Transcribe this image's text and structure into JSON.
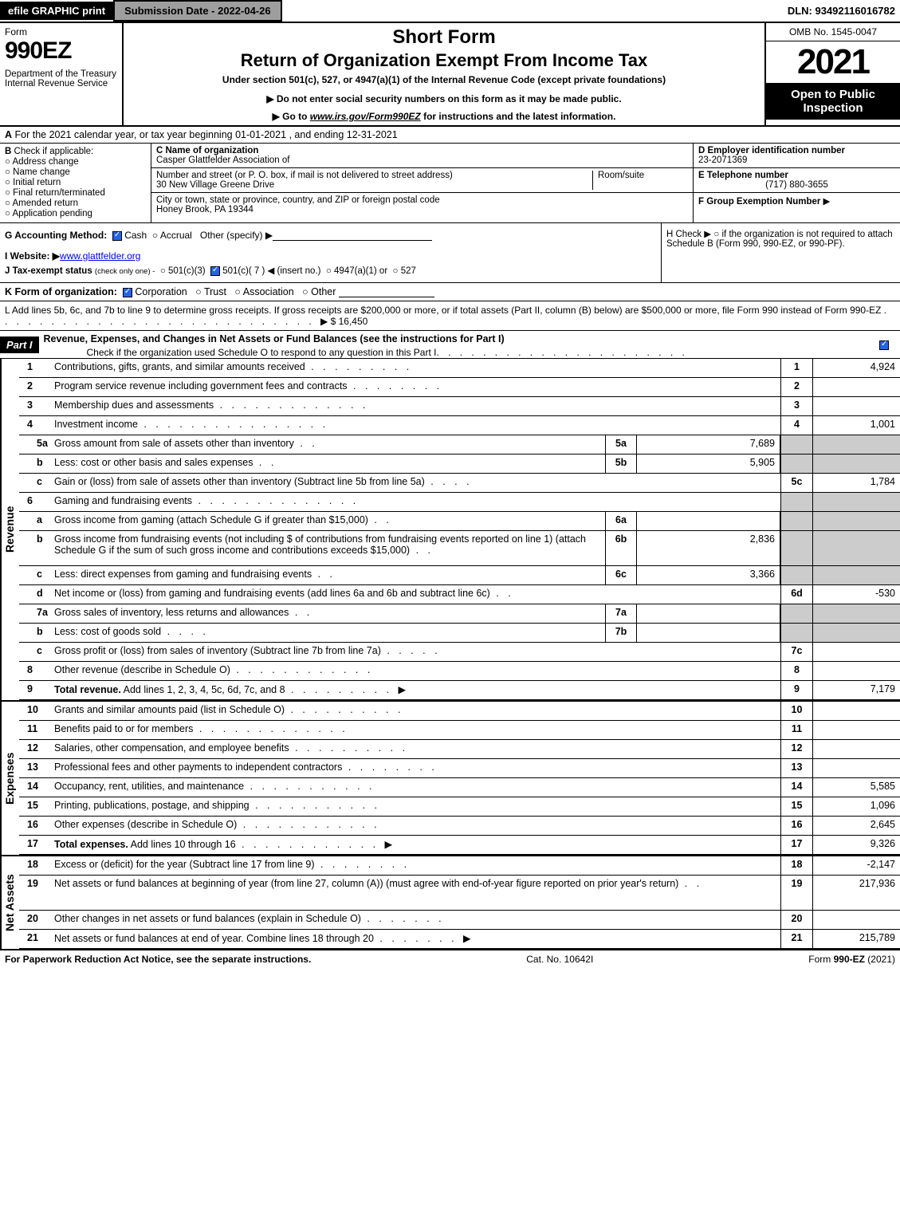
{
  "topbar": {
    "efile": "efile GRAPHIC print",
    "subdate": "Submission Date - 2022-04-26",
    "dln": "DLN: 93492116016782"
  },
  "header": {
    "form_word": "Form",
    "form_num": "990EZ",
    "dept": "Department of the Treasury\nInternal Revenue Service",
    "short_form": "Short Form",
    "return_title": "Return of Organization Exempt From Income Tax",
    "under": "Under section 501(c), 527, or 4947(a)(1) of the Internal Revenue Code (except private foundations)",
    "donot": "▶ Do not enter social security numbers on this form as it may be made public.",
    "goto_pre": "▶ Go to ",
    "goto_link": "www.irs.gov/Form990EZ",
    "goto_post": " for instructions and the latest information.",
    "omb": "OMB No. 1545-0047",
    "year": "2021",
    "open": "Open to Public Inspection"
  },
  "A": {
    "label": "A",
    "text": "For the 2021 calendar year, or tax year beginning 01-01-2021 , and ending 12-31-2021"
  },
  "B": {
    "label": "B",
    "check_if": "Check if applicable:",
    "opts": [
      "Address change",
      "Name change",
      "Initial return",
      "Final return/terminated",
      "Amended return",
      "Application pending"
    ]
  },
  "C": {
    "name_label": "C Name of organization",
    "name": "Casper Glattfelder Association of",
    "street_label": "Number and street (or P. O. box, if mail is not delivered to street address)",
    "street": "30 New Village Greene Drive",
    "room_label": "Room/suite",
    "city_label": "City or town, state or province, country, and ZIP or foreign postal code",
    "city": "Honey Brook, PA  19344"
  },
  "DEF": {
    "d_label": "D Employer identification number",
    "d_val": "23-2071369",
    "e_label": "E Telephone number",
    "e_val": "(717) 880-3655",
    "f_label": "F Group Exemption Number",
    "f_arrow": "▶"
  },
  "G": {
    "label": "G Accounting Method:",
    "cash": "Cash",
    "accrual": "Accrual",
    "other": "Other (specify) ▶"
  },
  "H": {
    "text1": "H  Check ▶",
    "text2": " if the organization is not required to attach Schedule B (Form 990, 990-EZ, or 990-PF)."
  },
  "I": {
    "label": "I Website: ▶",
    "val": "www.glattfelder.org"
  },
  "J": {
    "label": "J Tax-exempt status",
    "sub": "(check only one) -",
    "o1": "501(c)(3)",
    "o2": "501(c)( 7 ) ◀ (insert no.)",
    "o3": "4947(a)(1) or",
    "o4": "527"
  },
  "K": {
    "label": "K Form of organization:",
    "opts": [
      "Corporation",
      "Trust",
      "Association",
      "Other"
    ]
  },
  "L": {
    "text": "L Add lines 5b, 6c, and 7b to line 9 to determine gross receipts. If gross receipts are $200,000 or more, or if total assets (Part II, column (B) below) are $500,000 or more, file Form 990 instead of Form 990-EZ",
    "val": "$ 16,450"
  },
  "part1": {
    "label": "Part I",
    "title": "Revenue, Expenses, and Changes in Net Assets or Fund Balances (see the instructions for Part I)",
    "sub": "Check if the organization used Schedule O to respond to any question in this Part I"
  },
  "sections": {
    "revenue": "Revenue",
    "expenses": "Expenses",
    "netassets": "Net Assets"
  },
  "revenue_lines": [
    {
      "n": "1",
      "d": "Contributions, gifts, grants, and similar amounts received",
      "rn": "1",
      "rv": "4,924"
    },
    {
      "n": "2",
      "d": "Program service revenue including government fees and contracts",
      "rn": "2",
      "rv": ""
    },
    {
      "n": "3",
      "d": "Membership dues and assessments",
      "rn": "3",
      "rv": ""
    },
    {
      "n": "4",
      "d": "Investment income",
      "rn": "4",
      "rv": "1,001"
    },
    {
      "n": "5a",
      "sub": true,
      "d": "Gross amount from sale of assets other than inventory",
      "mn": "5a",
      "mv": "7,689",
      "grey": true
    },
    {
      "n": "b",
      "sub": true,
      "d": "Less: cost or other basis and sales expenses",
      "mn": "5b",
      "mv": "5,905",
      "grey": true
    },
    {
      "n": "c",
      "sub": true,
      "d": "Gain or (loss) from sale of assets other than inventory (Subtract line 5b from line 5a)",
      "rn": "5c",
      "rv": "1,784"
    },
    {
      "n": "6",
      "d": "Gaming and fundraising events",
      "noright": true,
      "grey": true
    },
    {
      "n": "a",
      "sub": true,
      "d": "Gross income from gaming (attach Schedule G if greater than $15,000)",
      "mn": "6a",
      "mv": "",
      "grey": true
    },
    {
      "n": "b",
      "sub": true,
      "d": "Gross income from fundraising events (not including $                              of contributions from fundraising events reported on line 1) (attach Schedule G if the sum of such gross income and contributions exceeds $15,000)",
      "mn": "6b",
      "mv": "2,836",
      "grey": true,
      "tall": true
    },
    {
      "n": "c",
      "sub": true,
      "d": "Less: direct expenses from gaming and fundraising events",
      "mn": "6c",
      "mv": "3,366",
      "grey": true
    },
    {
      "n": "d",
      "sub": true,
      "d": "Net income or (loss) from gaming and fundraising events (add lines 6a and 6b and subtract line 6c)",
      "rn": "6d",
      "rv": "-530"
    },
    {
      "n": "7a",
      "sub": true,
      "d": "Gross sales of inventory, less returns and allowances",
      "mn": "7a",
      "mv": "",
      "grey": true
    },
    {
      "n": "b",
      "sub": true,
      "d": "Less: cost of goods sold",
      "mn": "7b",
      "mv": "",
      "grey": true
    },
    {
      "n": "c",
      "sub": true,
      "d": "Gross profit or (loss) from sales of inventory (Subtract line 7b from line 7a)",
      "rn": "7c",
      "rv": ""
    },
    {
      "n": "8",
      "d": "Other revenue (describe in Schedule O)",
      "rn": "8",
      "rv": ""
    },
    {
      "n": "9",
      "d": "Total revenue. Add lines 1, 2, 3, 4, 5c, 6d, 7c, and 8",
      "rn": "9",
      "rv": "7,179",
      "bold": true,
      "arrow": true
    }
  ],
  "expense_lines": [
    {
      "n": "10",
      "d": "Grants and similar amounts paid (list in Schedule O)",
      "rn": "10",
      "rv": ""
    },
    {
      "n": "11",
      "d": "Benefits paid to or for members",
      "rn": "11",
      "rv": ""
    },
    {
      "n": "12",
      "d": "Salaries, other compensation, and employee benefits",
      "rn": "12",
      "rv": ""
    },
    {
      "n": "13",
      "d": "Professional fees and other payments to independent contractors",
      "rn": "13",
      "rv": ""
    },
    {
      "n": "14",
      "d": "Occupancy, rent, utilities, and maintenance",
      "rn": "14",
      "rv": "5,585"
    },
    {
      "n": "15",
      "d": "Printing, publications, postage, and shipping",
      "rn": "15",
      "rv": "1,096"
    },
    {
      "n": "16",
      "d": "Other expenses (describe in Schedule O)",
      "rn": "16",
      "rv": "2,645"
    },
    {
      "n": "17",
      "d": "Total expenses. Add lines 10 through 16",
      "rn": "17",
      "rv": "9,326",
      "bold": true,
      "arrow": true
    }
  ],
  "netasset_lines": [
    {
      "n": "18",
      "d": "Excess or (deficit) for the year (Subtract line 17 from line 9)",
      "rn": "18",
      "rv": "-2,147"
    },
    {
      "n": "19",
      "d": "Net assets or fund balances at beginning of year (from line 27, column (A)) (must agree with end-of-year figure reported on prior year's return)",
      "rn": "19",
      "rv": "217,936",
      "tall": true
    },
    {
      "n": "20",
      "d": "Other changes in net assets or fund balances (explain in Schedule O)",
      "rn": "20",
      "rv": ""
    },
    {
      "n": "21",
      "d": "Net assets or fund balances at end of year. Combine lines 18 through 20",
      "rn": "21",
      "rv": "215,789",
      "arrow": true
    }
  ],
  "footer": {
    "left": "For Paperwork Reduction Act Notice, see the separate instructions.",
    "mid": "Cat. No. 10642I",
    "right_pre": "Form ",
    "right_bold": "990-EZ",
    "right_post": " (2021)"
  },
  "colors": {
    "black": "#000000",
    "grey_cell": "#cccccc",
    "topbar_grey": "#9e9e9e",
    "check_blue": "#2563eb"
  }
}
